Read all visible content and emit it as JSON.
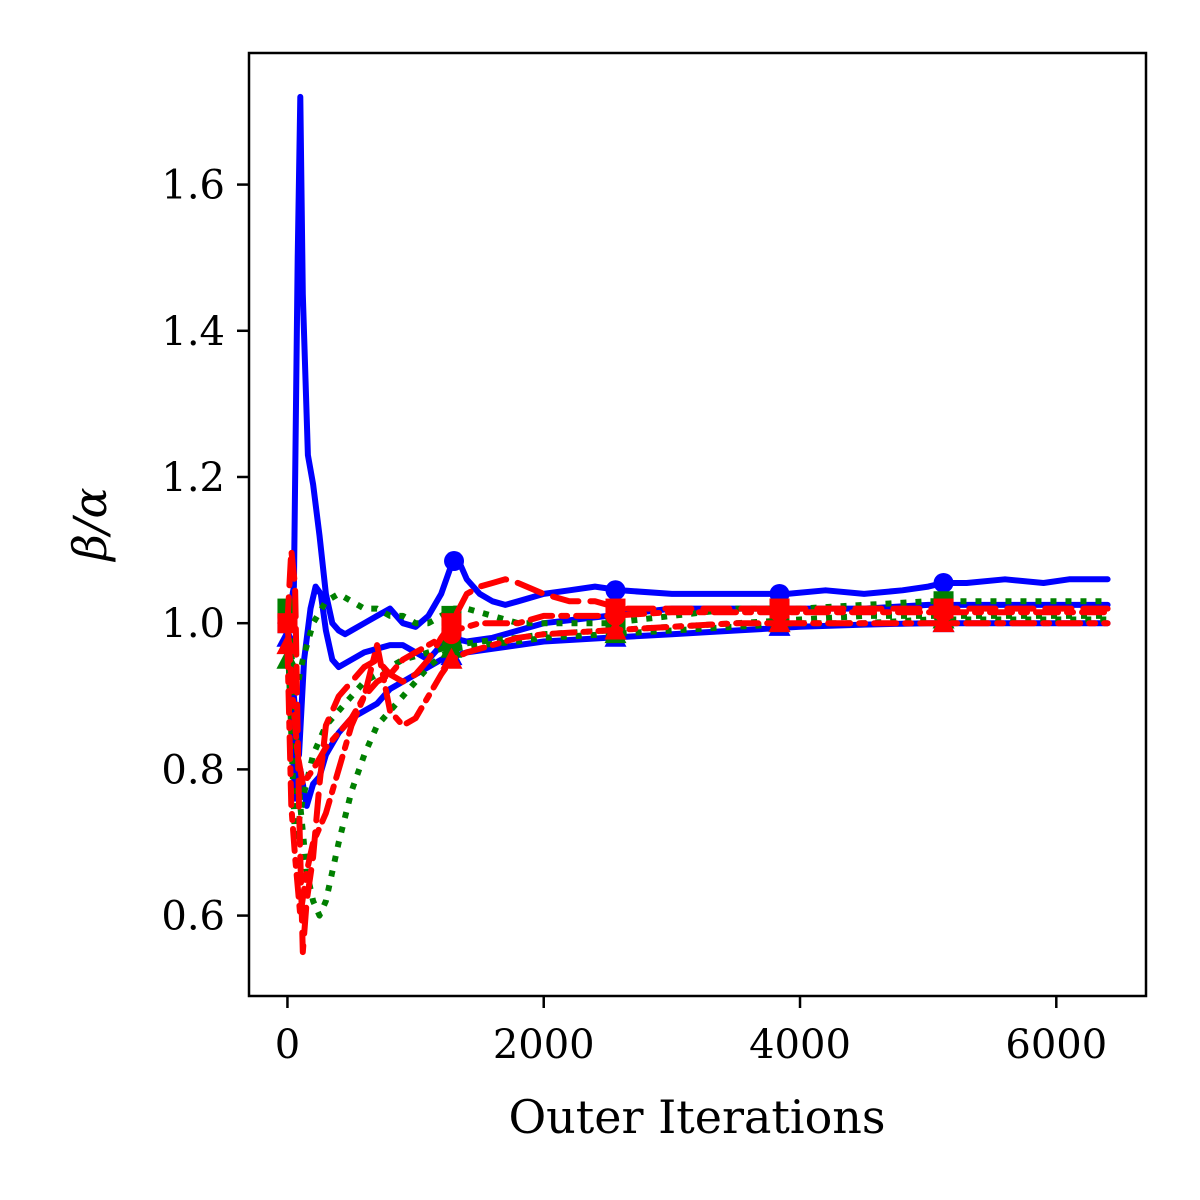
{
  "chart_data": {
    "type": "line",
    "title": "",
    "xlabel": "Outer Iterations",
    "ylabel": "β/α",
    "xlim": [
      -300,
      6700
    ],
    "ylim": [
      0.49,
      1.78
    ],
    "xticks": [
      0,
      2000,
      4000,
      6000
    ],
    "yticks": [
      0.6,
      0.8,
      1.0,
      1.2,
      1.4,
      1.6
    ],
    "xtick_labels": [
      "0",
      "2000",
      "4000",
      "6000"
    ],
    "ytick_labels": [
      "0.6",
      "0.8",
      "1.0",
      "1.2",
      "1.4",
      "1.6"
    ],
    "grid": false,
    "legend": false,
    "series": [
      {
        "color": "#0000ff",
        "style": "solid",
        "marker": "circle",
        "x": [
          0,
          50,
          80,
          100,
          120,
          160,
          200,
          250,
          300,
          350,
          400,
          450,
          500,
          600,
          700,
          800,
          900,
          1000,
          1100,
          1200,
          1280,
          1300,
          1320,
          1350,
          1400,
          1500,
          1600,
          1700,
          1800,
          2000,
          2200,
          2400,
          2600,
          3000,
          3500,
          3900,
          4200,
          4500,
          4800,
          5000,
          5120,
          5300,
          5600,
          5900,
          6100,
          6400
        ],
        "y": [
          1.0,
          1.05,
          1.5,
          1.72,
          1.45,
          1.23,
          1.19,
          1.12,
          1.04,
          1.0,
          0.99,
          0.985,
          0.99,
          1.0,
          1.01,
          1.02,
          1.0,
          0.995,
          1.01,
          1.04,
          1.08,
          1.085,
          1.09,
          1.08,
          1.06,
          1.04,
          1.03,
          1.025,
          1.03,
          1.04,
          1.045,
          1.05,
          1.045,
          1.04,
          1.04,
          1.04,
          1.045,
          1.04,
          1.045,
          1.05,
          1.055,
          1.055,
          1.06,
          1.055,
          1.06,
          1.06
        ],
        "markers_x": [
          0,
          1300,
          2560,
          3840,
          5120
        ],
        "markers_y": [
          1.0,
          1.085,
          1.045,
          1.04,
          1.055
        ]
      },
      {
        "color": "#0000ff",
        "style": "solid",
        "marker": "square",
        "x": [
          0,
          50,
          90,
          130,
          180,
          220,
          260,
          300,
          350,
          400,
          500,
          600,
          700,
          800,
          900,
          1000,
          1100,
          1200,
          1280,
          1400,
          1600,
          1800,
          2000,
          2500,
          3000,
          3500,
          4000,
          4500,
          5000,
          5500,
          6000,
          6400
        ],
        "y": [
          1.0,
          0.9,
          0.82,
          0.95,
          1.02,
          1.05,
          1.04,
          0.99,
          0.95,
          0.94,
          0.95,
          0.96,
          0.965,
          0.97,
          0.97,
          0.96,
          0.95,
          0.97,
          0.98,
          0.975,
          0.98,
          0.99,
          1.0,
          1.01,
          1.02,
          1.02,
          1.02,
          1.02,
          1.025,
          1.025,
          1.025,
          1.025
        ],
        "markers_x": [
          0,
          1280,
          2560,
          3840,
          5120
        ],
        "markers_y": [
          1.0,
          0.98,
          1.01,
          1.02,
          1.025
        ]
      },
      {
        "color": "#0000ff",
        "style": "solid",
        "marker": "triangle",
        "x": [
          0,
          60,
          100,
          150,
          200,
          250,
          300,
          400,
          500,
          600,
          700,
          800,
          900,
          1000,
          1100,
          1200,
          1300,
          1400,
          1600,
          1800,
          2000,
          2500,
          3000,
          3500,
          4000,
          4500,
          5000,
          5500,
          6000,
          6400
        ],
        "y": [
          0.98,
          0.76,
          0.8,
          0.75,
          0.78,
          0.79,
          0.82,
          0.85,
          0.87,
          0.88,
          0.89,
          0.91,
          0.92,
          0.93,
          0.94,
          0.95,
          0.955,
          0.96,
          0.965,
          0.97,
          0.975,
          0.98,
          0.985,
          0.99,
          0.995,
          0.998,
          1.0,
          1.0,
          1.0,
          1.0
        ],
        "markers_x": [
          0,
          1280,
          2560,
          3840,
          5120
        ],
        "markers_y": [
          0.98,
          0.955,
          0.98,
          0.995,
          1.0
        ]
      },
      {
        "color": "#008000",
        "style": "dotted",
        "marker": "square",
        "x": [
          0,
          60,
          120,
          200,
          300,
          400,
          500,
          600,
          700,
          800,
          900,
          1000,
          1100,
          1200,
          1300,
          1400,
          1600,
          1800,
          2000,
          2500,
          3000,
          3500,
          4000,
          4500,
          5000,
          5500,
          6000,
          6400
        ],
        "y": [
          1.02,
          0.9,
          0.95,
          1.0,
          1.03,
          1.04,
          1.03,
          1.02,
          1.02,
          1.01,
          1.01,
          1.0,
          1.0,
          1.01,
          1.02,
          1.02,
          1.01,
          1.0,
          1.0,
          1.0,
          1.01,
          1.02,
          1.02,
          1.025,
          1.03,
          1.03,
          1.03,
          1.03
        ],
        "markers_x": [
          0,
          1280,
          2560,
          3840,
          5120
        ],
        "markers_y": [
          1.02,
          1.01,
          1.0,
          1.02,
          1.03
        ]
      },
      {
        "color": "#008000",
        "style": "dotted",
        "marker": "triangle",
        "x": [
          0,
          60,
          100,
          150,
          200,
          250,
          300,
          400,
          500,
          600,
          700,
          800,
          900,
          1000,
          1100,
          1200,
          1300,
          1500,
          1800,
          2000,
          2500,
          3000,
          3500,
          4000,
          4500,
          5000,
          5500,
          6000,
          6400
        ],
        "y": [
          0.95,
          0.87,
          0.75,
          0.66,
          0.62,
          0.6,
          0.62,
          0.7,
          0.77,
          0.82,
          0.86,
          0.88,
          0.9,
          0.92,
          0.94,
          0.955,
          0.965,
          0.97,
          0.975,
          0.98,
          0.985,
          0.99,
          0.995,
          1.0,
          1.0,
          1.005,
          1.005,
          1.005,
          1.005
        ],
        "markers_x": [
          0,
          1280,
          2560,
          3840,
          5120
        ],
        "markers_y": [
          0.95,
          0.965,
          0.985,
          1.0,
          1.005
        ]
      },
      {
        "color": "#008000",
        "style": "dotted",
        "marker": "circle",
        "x": [
          0,
          60,
          120,
          200,
          300,
          400,
          500,
          600,
          700,
          800,
          900,
          1000,
          1100,
          1200,
          1300,
          1500,
          1800,
          2000,
          2500,
          3000,
          3500,
          4000,
          4500,
          5000,
          5500,
          6000,
          6400
        ],
        "y": [
          1.0,
          0.7,
          0.76,
          0.82,
          0.86,
          0.88,
          0.9,
          0.92,
          0.93,
          0.94,
          0.95,
          0.955,
          0.96,
          0.965,
          0.97,
          0.975,
          0.98,
          0.985,
          0.99,
          0.995,
          1.0,
          1.005,
          1.01,
          1.01,
          1.01,
          1.01,
          1.01
        ],
        "markers_x": [
          0,
          1280,
          2560,
          3840,
          5120
        ],
        "markers_y": [
          1.0,
          0.97,
          0.99,
          1.005,
          1.01
        ]
      },
      {
        "color": "#ff0000",
        "style": "dashed",
        "marker": "square",
        "x": [
          0,
          30,
          60,
          90,
          120,
          150,
          200,
          250,
          300,
          400,
          500,
          600,
          700,
          800,
          900,
          1000,
          1100,
          1200,
          1280,
          1400,
          1500,
          1600,
          1700,
          1800,
          2000,
          2200,
          2400,
          2600,
          3000,
          3500,
          4000,
          4500,
          5000,
          5500,
          6000,
          6400
        ],
        "y": [
          1.0,
          1.1,
          1.05,
          0.75,
          0.55,
          0.62,
          0.68,
          0.78,
          0.86,
          0.9,
          0.92,
          0.94,
          0.95,
          0.93,
          0.92,
          0.93,
          0.95,
          0.98,
          1.0,
          1.04,
          1.05,
          1.055,
          1.06,
          1.055,
          1.04,
          1.03,
          1.03,
          1.02,
          1.02,
          1.02,
          1.02,
          1.02,
          1.02,
          1.02,
          1.02,
          1.02
        ],
        "markers_x": [
          0,
          1280,
          2560,
          3840,
          5120
        ],
        "markers_y": [
          1.0,
          1.0,
          1.02,
          1.02,
          1.02
        ]
      },
      {
        "color": "#ff0000",
        "style": "dashdot",
        "marker": "triangle",
        "x": [
          0,
          30,
          60,
          100,
          150,
          200,
          250,
          300,
          400,
          500,
          600,
          700,
          800,
          900,
          1000,
          1100,
          1200,
          1280,
          1400,
          1600,
          1800,
          2000,
          2500,
          3000,
          3500,
          4000,
          4500,
          5000,
          5500,
          6000,
          6400
        ],
        "y": [
          0.97,
          0.75,
          0.68,
          0.6,
          0.66,
          0.7,
          0.72,
          0.74,
          0.8,
          0.86,
          0.9,
          0.97,
          0.88,
          0.86,
          0.87,
          0.9,
          0.93,
          0.95,
          0.96,
          0.97,
          0.98,
          0.985,
          0.99,
          0.995,
          1.0,
          1.0,
          1.0,
          1.0,
          1.0,
          1.0,
          1.0
        ],
        "markers_x": [
          0,
          1280,
          2560,
          3840,
          5120
        ],
        "markers_y": [
          0.97,
          0.95,
          0.99,
          1.0,
          1.0
        ]
      },
      {
        "color": "#ff0000",
        "style": "dashdot",
        "marker": "circle",
        "x": [
          0,
          40,
          80,
          120,
          200,
          300,
          400,
          500,
          600,
          700,
          800,
          900,
          1000,
          1100,
          1200,
          1300,
          1500,
          1800,
          2000,
          2500,
          3000,
          3500,
          4000,
          4500,
          5000,
          5500,
          6000,
          6400
        ],
        "y": [
          1.0,
          0.9,
          0.82,
          0.78,
          0.8,
          0.83,
          0.85,
          0.87,
          0.9,
          0.92,
          0.93,
          0.95,
          0.96,
          0.97,
          0.98,
          0.99,
          1.0,
          1.0,
          1.01,
          1.01,
          1.015,
          1.015,
          1.015,
          1.015,
          1.015,
          1.015,
          1.015,
          1.015
        ],
        "markers_x": [
          0,
          1280,
          2560,
          3840,
          5120
        ],
        "markers_y": [
          1.0,
          0.985,
          1.01,
          1.015,
          1.015
        ]
      }
    ]
  }
}
